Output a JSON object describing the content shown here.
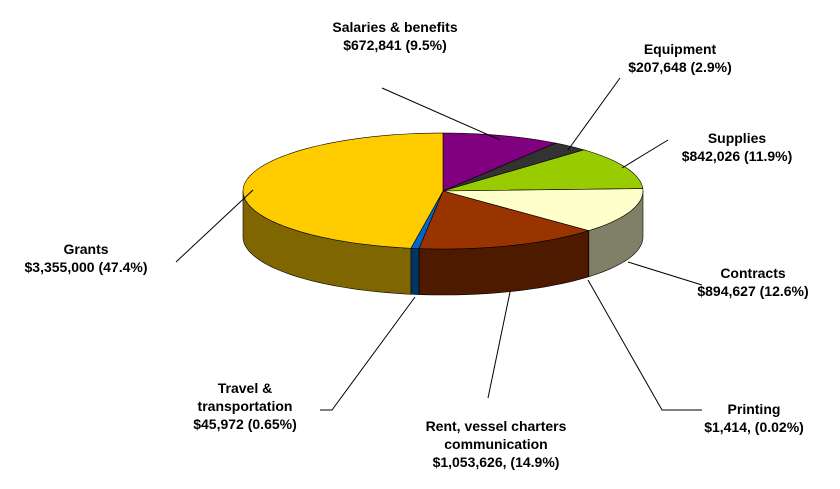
{
  "chart_data": {
    "type": "pie3d",
    "categories": [
      "Salaries & benefits",
      "Equipment",
      "Supplies",
      "Contracts",
      "Printing",
      "Rent, vessel charters communication",
      "Travel & transportation",
      "Grants"
    ],
    "values": [
      672841,
      207648,
      842026,
      894627,
      1414,
      1053626,
      45972,
      3355000
    ],
    "value_labels": [
      "$672,841 (9.5%)",
      "$207,648 (2.9%)",
      "$842,026 (11.9%)",
      "$894,627 (12.6%)",
      "$1,414, (0.02%)",
      "$1,053,626, (14.9%)",
      "$45,972 (0.65%)",
      "$3,355,000 (47.4%)"
    ],
    "colors": [
      "#800080",
      "#333333",
      "#99cc00",
      "#ffffcc",
      "#ff99cc",
      "#993300",
      "#0066cc",
      "#ffcc00"
    ]
  }
}
